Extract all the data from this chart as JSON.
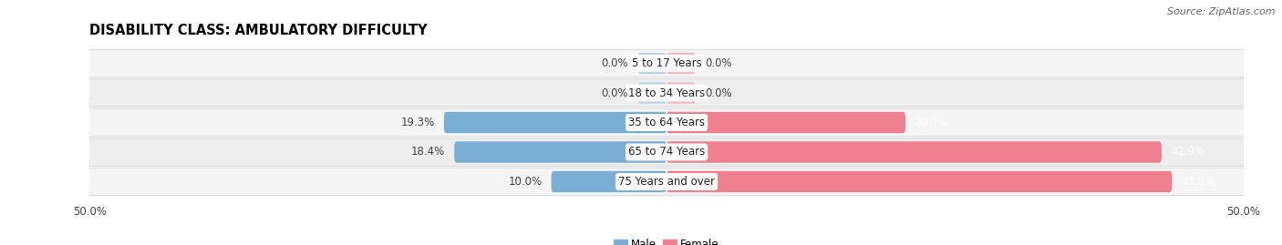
{
  "title": "DISABILITY CLASS: AMBULATORY DIFFICULTY",
  "source": "Source: ZipAtlas.com",
  "categories": [
    "5 to 17 Years",
    "18 to 34 Years",
    "35 to 64 Years",
    "65 to 74 Years",
    "75 Years and over"
  ],
  "male_values": [
    0.0,
    0.0,
    19.3,
    18.4,
    10.0
  ],
  "female_values": [
    0.0,
    0.0,
    20.7,
    42.9,
    43.8
  ],
  "male_min_display": 2.5,
  "female_min_display": 2.5,
  "xlim": 50.0,
  "male_color": "#7aaed3",
  "female_color": "#f08090",
  "male_color_zero": "#b8d4e8",
  "female_color_zero": "#f5b8c4",
  "row_bg_color": "#efefef",
  "row_alt_color": "#e8e8e8",
  "title_fontsize": 10.5,
  "label_fontsize": 8.5,
  "tick_fontsize": 8.5,
  "source_fontsize": 8,
  "value_label_threshold": 5.0
}
